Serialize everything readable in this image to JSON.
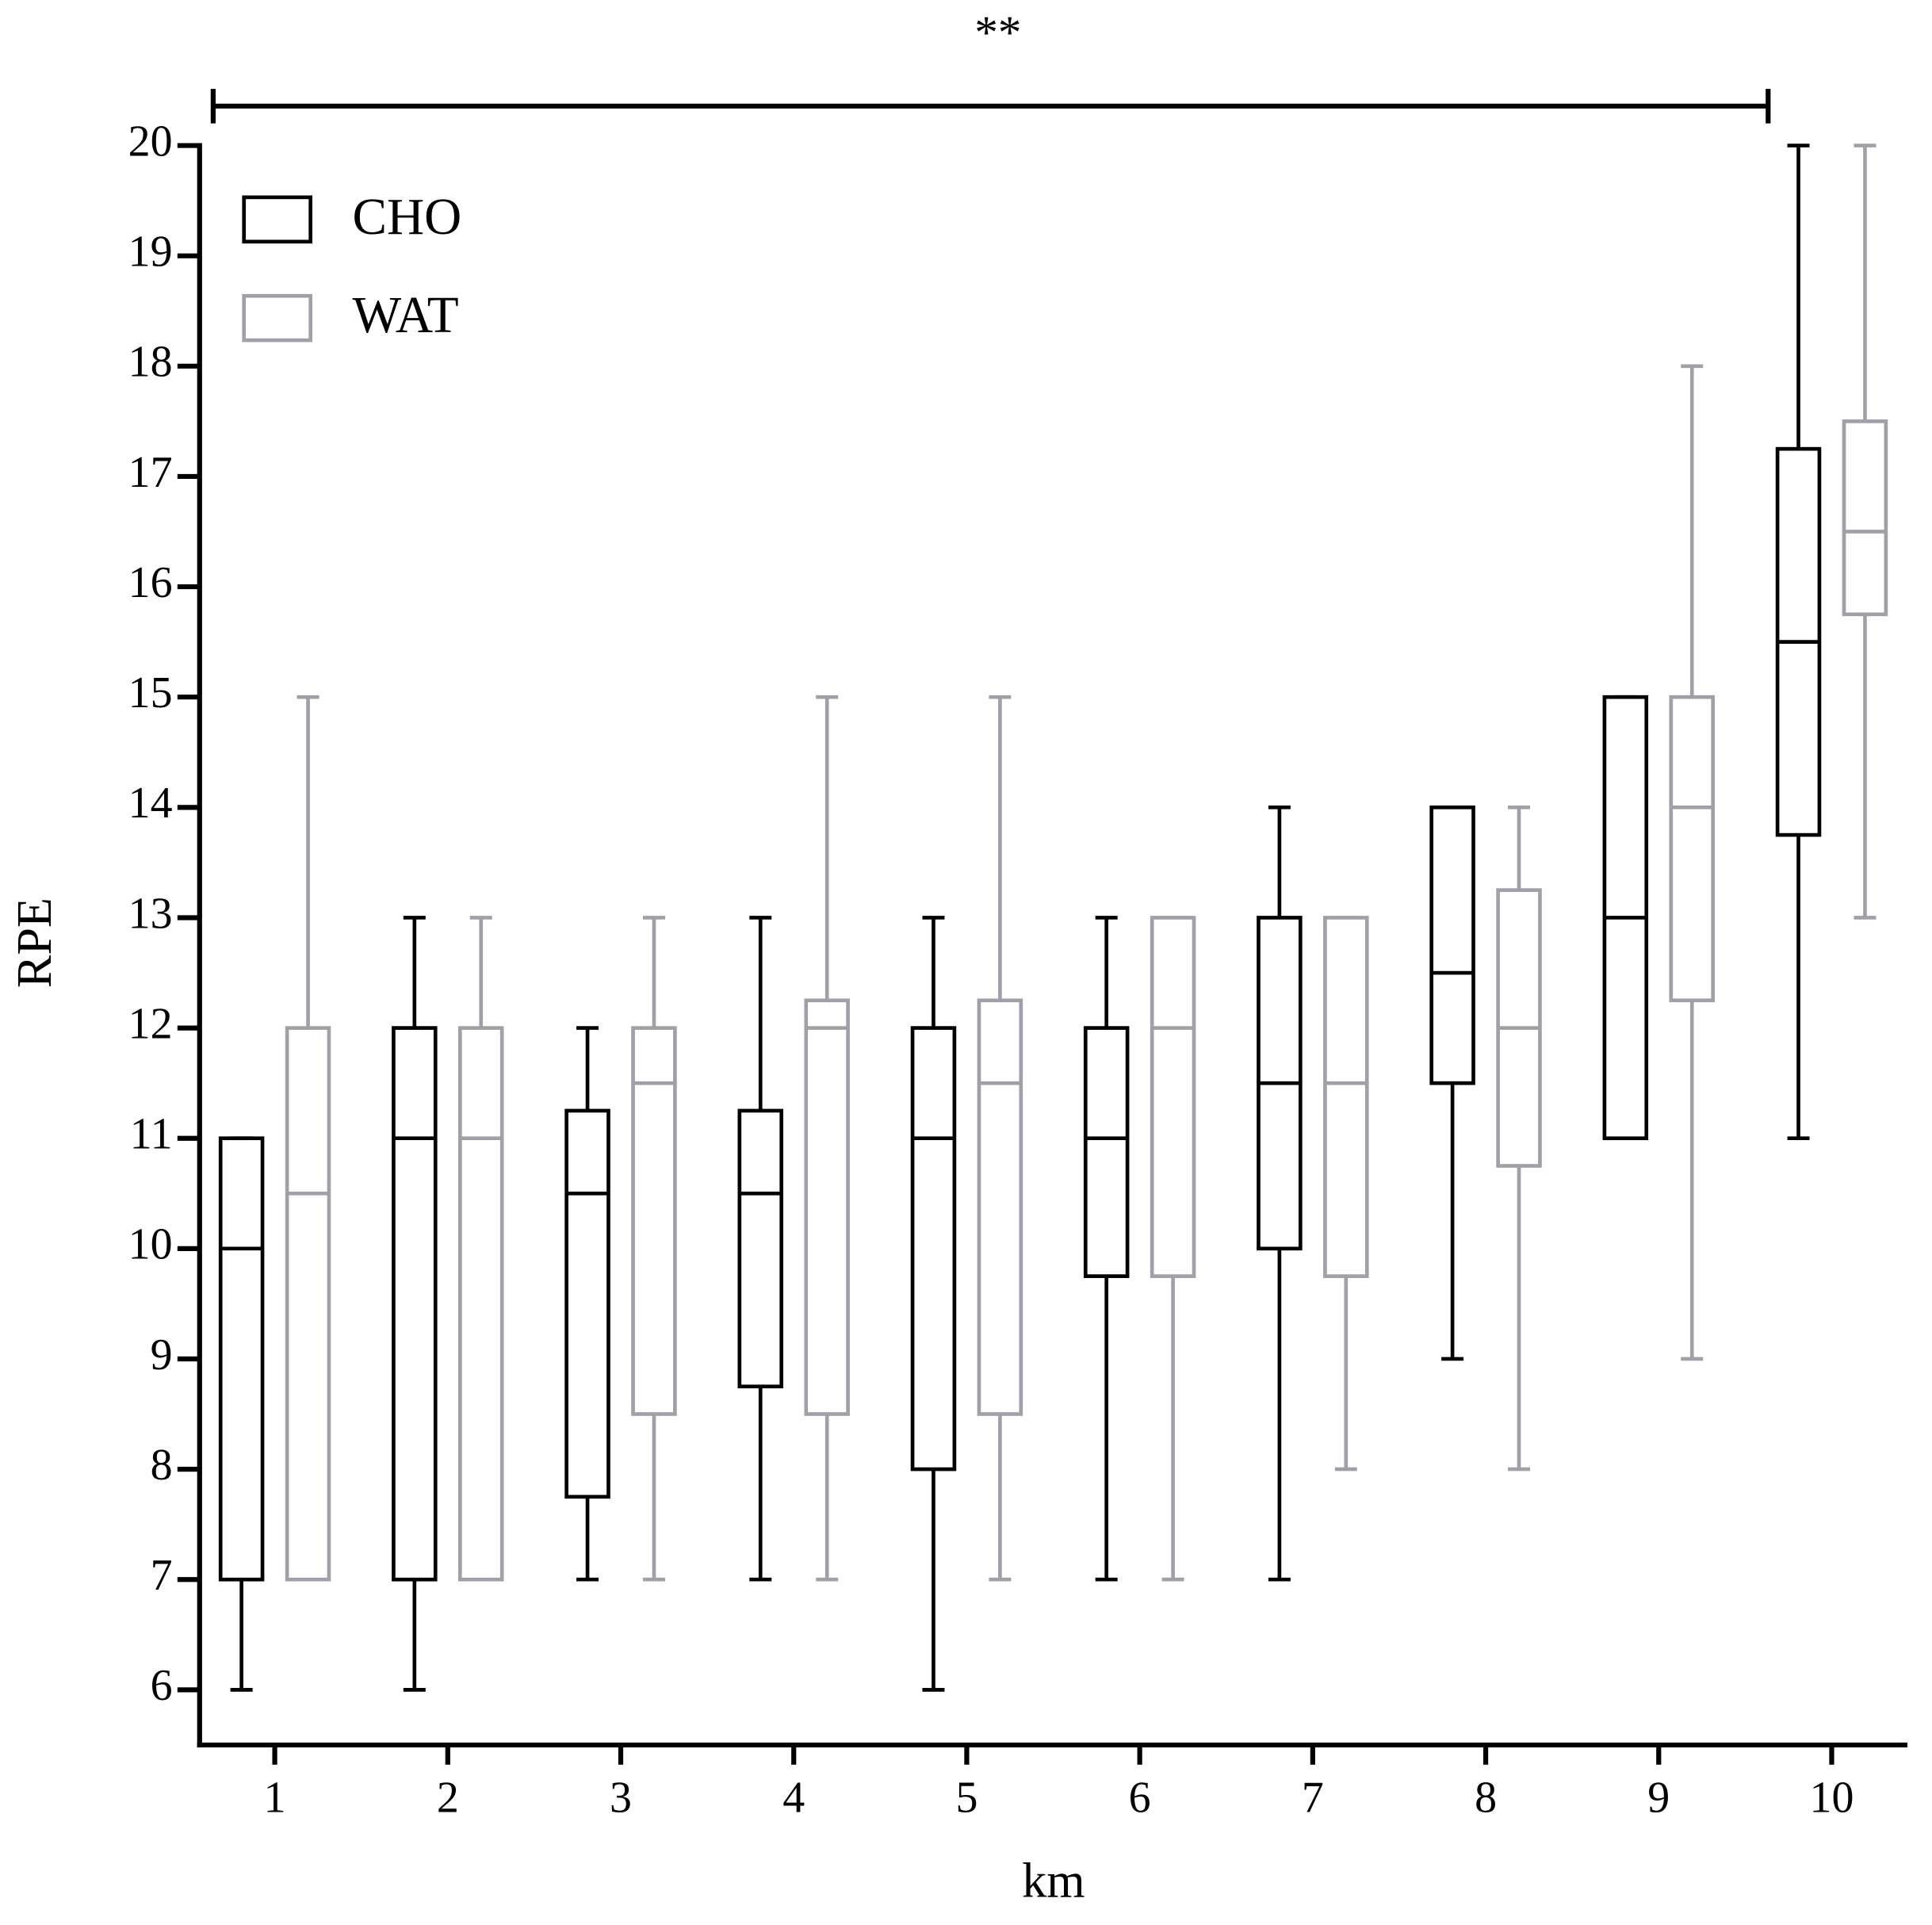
{
  "chart_data": {
    "type": "box",
    "annotation": "**",
    "x_label": "km",
    "y_label": "RPE",
    "categories": [
      "1",
      "2",
      "3",
      "4",
      "5",
      "6",
      "7",
      "8",
      "9",
      "10"
    ],
    "ylim": [
      5.5,
      20
    ],
    "yticks": [
      6,
      7,
      8,
      9,
      10,
      11,
      12,
      13,
      14,
      15,
      16,
      17,
      18,
      19,
      20
    ],
    "legend": "top-left",
    "series": [
      {
        "name": "CHO",
        "color": "#000000",
        "min": [
          6,
          6,
          7,
          7,
          6,
          7,
          7,
          9,
          11,
          11
        ],
        "q1": [
          7,
          7,
          7.75,
          8.75,
          8,
          9.75,
          10,
          11.5,
          11,
          13.75
        ],
        "median": [
          10,
          11,
          10.5,
          10.5,
          11,
          11,
          11.5,
          12.5,
          13,
          15.5
        ],
        "q3": [
          11,
          12,
          11.25,
          11.25,
          12,
          12,
          13,
          14,
          15,
          17.25
        ],
        "max": [
          11,
          13,
          12,
          13,
          13,
          13,
          14,
          14,
          15,
          20
        ]
      },
      {
        "name": "WAT",
        "color": "#a0a0a8",
        "min": [
          7,
          7,
          7,
          7,
          7,
          7,
          8,
          8,
          9,
          13
        ],
        "q1": [
          7,
          7,
          8.5,
          8.5,
          8.5,
          9.75,
          9.75,
          10.75,
          12.25,
          15.75
        ],
        "median": [
          10.5,
          11,
          11.5,
          12,
          11.5,
          12,
          11.5,
          12,
          14,
          16.5
        ],
        "q3": [
          12,
          12,
          12,
          12.25,
          12.25,
          13,
          13,
          13.25,
          15,
          17.5
        ],
        "max": [
          15,
          13,
          13,
          15,
          15,
          13,
          13,
          14,
          18,
          20
        ]
      }
    ]
  }
}
